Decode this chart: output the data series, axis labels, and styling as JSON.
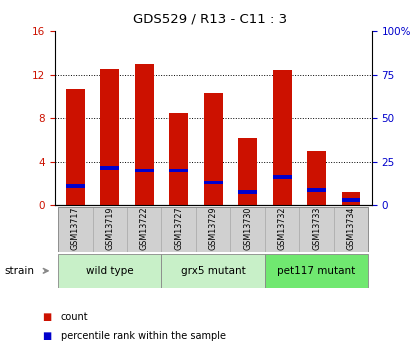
{
  "title": "GDS529 / R13 - C11 : 3",
  "samples": [
    "GSM13717",
    "GSM13719",
    "GSM13722",
    "GSM13727",
    "GSM13729",
    "GSM13730",
    "GSM13732",
    "GSM13733",
    "GSM13734"
  ],
  "count_values": [
    10.7,
    12.5,
    13.0,
    8.5,
    10.3,
    6.2,
    12.4,
    5.0,
    1.2
  ],
  "percentile_values_left_scale": [
    1.8,
    3.4,
    3.2,
    3.2,
    2.1,
    1.2,
    2.6,
    1.4,
    0.45
  ],
  "percentile_bar_height": 0.35,
  "groups": [
    {
      "label": "wild type",
      "start": 0,
      "end": 3,
      "color": "#c8f0c8"
    },
    {
      "label": "grx5 mutant",
      "start": 3,
      "end": 6,
      "color": "#c8f0c8"
    },
    {
      "label": "pet117 mutant",
      "start": 6,
      "end": 9,
      "color": "#70e870"
    }
  ],
  "ylim_left": [
    0,
    16
  ],
  "ylim_right": [
    0,
    100
  ],
  "yticks_left": [
    0,
    4,
    8,
    12,
    16
  ],
  "yticks_right": [
    0,
    25,
    50,
    75,
    100
  ],
  "ytick_labels_right": [
    "0",
    "25",
    "50",
    "75",
    "100%"
  ],
  "bar_color": "#cc1100",
  "percentile_color": "#0000cc",
  "bar_width": 0.55,
  "tick_bg_color": "#d0d0d0",
  "strain_label": "strain",
  "grid_lines": [
    4,
    8,
    12
  ],
  "left_axis_color": "#cc1100",
  "right_axis_color": "#0000cc"
}
